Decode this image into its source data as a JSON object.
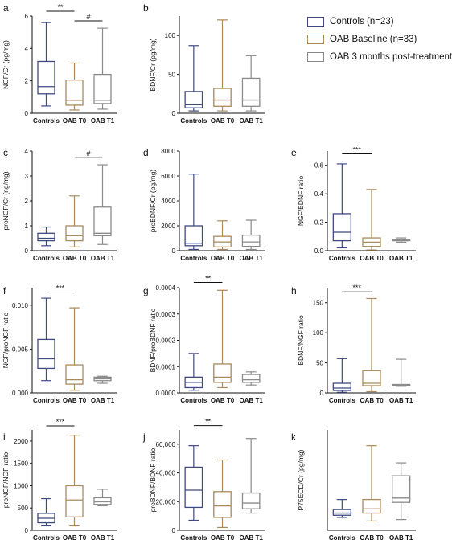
{
  "groups": [
    {
      "name": "Controls (n=23)",
      "color": "#3f4a7e"
    },
    {
      "name": "OAB Baseline (n=33)",
      "color": "#a88a5c"
    },
    {
      "name": "OAB 3 months post-treatment",
      "color": "#8a8a8a"
    }
  ],
  "chart_data": [
    {
      "panel": "a",
      "type": "boxplot",
      "title": "",
      "ylabel": "NGF/Cr (pg/mg)",
      "ylim": [
        0,
        6
      ],
      "yticks": [
        {
          "v": 0,
          "t": "0"
        },
        {
          "v": 2,
          "t": "2"
        },
        {
          "v": 4,
          "t": "4"
        },
        {
          "v": 6,
          "t": "6"
        }
      ],
      "categories": [
        "Controls",
        "OAB T0",
        "OAB T1"
      ],
      "boxes": [
        [
          0.45,
          1.2,
          1.65,
          3.2,
          5.6
        ],
        [
          0.2,
          0.5,
          0.8,
          2.05,
          3.1
        ],
        [
          0.25,
          0.6,
          0.8,
          2.4,
          5.25
        ]
      ],
      "sig": [
        {
          "from": 0,
          "to": 1,
          "y": 6.3,
          "label": "**"
        },
        {
          "from": 1,
          "to": 2,
          "y": 5.7,
          "label": "#"
        }
      ]
    },
    {
      "panel": "b",
      "type": "boxplot",
      "title": "",
      "ylabel": "BDNF/Cr (pg/mg)",
      "ylim": [
        0,
        125
      ],
      "yticks": [
        {
          "v": 0,
          "t": "0"
        },
        {
          "v": 50,
          "t": "50"
        },
        {
          "v": 100,
          "t": "100"
        }
      ],
      "categories": [
        "Controls",
        "OAB T0",
        "OAB T1"
      ],
      "boxes": [
        [
          3,
          7,
          11,
          28,
          87
        ],
        [
          3,
          9,
          17,
          32,
          120
        ],
        [
          3,
          9,
          17,
          45,
          74
        ]
      ],
      "sig": []
    },
    {
      "panel": "c",
      "type": "boxplot",
      "title": "",
      "ylabel": "proNGF/Cr (ng/mg)",
      "ylim": [
        0,
        4
      ],
      "yticks": [
        {
          "v": 0,
          "t": "0"
        },
        {
          "v": 1,
          "t": "1"
        },
        {
          "v": 2,
          "t": "2"
        },
        {
          "v": 3,
          "t": "3"
        },
        {
          "v": 4,
          "t": "4"
        }
      ],
      "categories": [
        "Controls",
        "OAB T0",
        "OAB T1"
      ],
      "boxes": [
        [
          0.2,
          0.4,
          0.5,
          0.7,
          0.95
        ],
        [
          0.15,
          0.4,
          0.6,
          1.0,
          2.2
        ],
        [
          0.25,
          0.6,
          0.7,
          1.75,
          3.45
        ]
      ],
      "sig": [
        {
          "from": 1,
          "to": 2,
          "y": 3.75,
          "label": "#"
        }
      ]
    },
    {
      "panel": "d",
      "type": "boxplot",
      "title": "",
      "ylabel": "proBDNF/Cr (pg/mg)",
      "ylim": [
        0,
        8000
      ],
      "yticks": [
        {
          "v": 0,
          "t": "0"
        },
        {
          "v": 2000,
          "t": "2000"
        },
        {
          "v": 4000,
          "t": "4000"
        },
        {
          "v": 6000,
          "t": "6000"
        },
        {
          "v": 8000,
          "t": "8000"
        }
      ],
      "categories": [
        "Controls",
        "OAB T0",
        "OAB T1"
      ],
      "boxes": [
        [
          100,
          400,
          600,
          2000,
          6150
        ],
        [
          100,
          300,
          700,
          1150,
          2400
        ],
        [
          100,
          350,
          700,
          1250,
          2450
        ]
      ],
      "sig": []
    },
    {
      "panel": "e",
      "type": "boxplot",
      "title": "",
      "ylabel": "NGF/BDNF ratio",
      "ylim": [
        0,
        0.7
      ],
      "yticks": [
        {
          "v": 0,
          "t": "0.0"
        },
        {
          "v": 0.2,
          "t": "0.2"
        },
        {
          "v": 0.4,
          "t": "0.4"
        },
        {
          "v": 0.6,
          "t": "0.6"
        }
      ],
      "categories": [
        "Controls",
        "OAB T0",
        "OAB T1"
      ],
      "boxes": [
        [
          0.02,
          0.07,
          0.13,
          0.26,
          0.61
        ],
        [
          0.005,
          0.03,
          0.06,
          0.09,
          0.43
        ],
        [
          0.06,
          0.07,
          0.075,
          0.08,
          0.09
        ]
      ],
      "sig": [
        {
          "from": 0,
          "to": 1,
          "y": 0.68,
          "label": "***"
        }
      ]
    },
    {
      "panel": "f",
      "type": "boxplot",
      "title": "",
      "ylabel": "NGF/proNGF ratio",
      "ylim": [
        0,
        0.012
      ],
      "yticks": [
        {
          "v": 0,
          "t": "0.000"
        },
        {
          "v": 0.005,
          "t": "0.005"
        },
        {
          "v": 0.01,
          "t": "0.010"
        }
      ],
      "categories": [
        "Controls",
        "OAB T0",
        "OAB T1"
      ],
      "boxes": [
        [
          0.0014,
          0.0028,
          0.0039,
          0.0061,
          0.0108
        ],
        [
          0.0003,
          0.001,
          0.0015,
          0.0032,
          0.0097
        ],
        [
          0.0011,
          0.0014,
          0.0016,
          0.0018,
          0.0019
        ]
      ],
      "sig": [
        {
          "from": 0,
          "to": 1,
          "y": 0.0115,
          "label": "***"
        }
      ]
    },
    {
      "panel": "g",
      "type": "boxplot",
      "title": "",
      "ylabel": "BDNF/proBDNF ratio",
      "ylim": [
        0,
        0.0004
      ],
      "yticks": [
        {
          "v": 0,
          "t": "0.0000"
        },
        {
          "v": 0.0001,
          "t": "0.0001"
        },
        {
          "v": 0.0002,
          "t": "0.0002"
        },
        {
          "v": 0.0003,
          "t": "0.0003"
        },
        {
          "v": 0.0004,
          "t": "0.0004"
        }
      ],
      "categories": [
        "Controls",
        "OAB T0",
        "OAB T1"
      ],
      "boxes": [
        [
          1e-05,
          2e-05,
          4e-05,
          6e-05,
          0.00015
        ],
        [
          2e-05,
          4e-05,
          6e-05,
          0.00011,
          0.00039
        ],
        [
          3e-05,
          4e-05,
          5e-05,
          7e-05,
          8e-05
        ]
      ],
      "sig": [
        {
          "from": 0,
          "to": 1,
          "y": 0.00042,
          "label": "**"
        }
      ]
    },
    {
      "panel": "h",
      "type": "boxplot",
      "title": "",
      "ylabel": "BDNF/NGF ratio",
      "ylim": [
        0,
        175
      ],
      "yticks": [
        {
          "v": 0,
          "t": "0"
        },
        {
          "v": 50,
          "t": "50"
        },
        {
          "v": 100,
          "t": "100"
        },
        {
          "v": 150,
          "t": "150"
        }
      ],
      "categories": [
        "Controls",
        "OAB T0",
        "OAB T1"
      ],
      "boxes": [
        [
          1,
          4,
          8,
          16,
          57
        ],
        [
          2,
          12,
          16,
          37,
          157
        ],
        [
          11,
          12,
          13,
          14,
          56
        ]
      ],
      "sig": [
        {
          "from": 0,
          "to": 1,
          "y": 168,
          "label": "***"
        }
      ]
    },
    {
      "panel": "i",
      "type": "boxplot",
      "title": "",
      "ylabel": "proNGF/NGF ratio",
      "ylim": [
        0,
        2250
      ],
      "yticks": [
        {
          "v": 0,
          "t": "0"
        },
        {
          "v": 500,
          "t": "500"
        },
        {
          "v": 1000,
          "t": "1000"
        },
        {
          "v": 1500,
          "t": "1500"
        },
        {
          "v": 2000,
          "t": "2000"
        }
      ],
      "categories": [
        "Controls",
        "OAB T0",
        "OAB T1"
      ],
      "boxes": [
        [
          100,
          170,
          270,
          380,
          710
        ],
        [
          100,
          300,
          680,
          1000,
          2130
        ],
        [
          550,
          580,
          640,
          730,
          920
        ]
      ],
      "sig": [
        {
          "from": 0,
          "to": 1,
          "y": 2340,
          "label": "***"
        }
      ]
    },
    {
      "panel": "j",
      "type": "boxplot",
      "title": "",
      "ylabel": "proBDNF/BDNF ratio",
      "ylim": [
        0,
        70000
      ],
      "yticks": [
        {
          "v": 0,
          "t": "0"
        },
        {
          "v": 20000,
          "t": "20,000"
        },
        {
          "v": 40000,
          "t": "40,000"
        },
        {
          "v": 60000,
          "t": "60,000"
        }
      ],
      "categories": [
        "Controls",
        "OAB T0",
        "OAB T1"
      ],
      "boxes": [
        [
          7000,
          16000,
          28000,
          44000,
          59000
        ],
        [
          2000,
          9000,
          17000,
          27000,
          49000
        ],
        [
          12000,
          15000,
          19000,
          26000,
          64000
        ]
      ],
      "sig": [
        {
          "from": 0,
          "to": 1,
          "y": 73000,
          "label": "**"
        }
      ]
    },
    {
      "panel": "k",
      "type": "boxplot",
      "title": "",
      "ylabel": "P75ECD/Cr (pg/mg)",
      "ylim": [
        0,
        14
      ],
      "yticks": [],
      "categories": [
        "Controls",
        "OAB T0",
        "OAB T1"
      ],
      "boxes": [
        [
          1.8,
          2.1,
          2.4,
          2.9,
          4.3
        ],
        [
          1.3,
          2.4,
          3.0,
          4.3,
          11.8
        ],
        [
          1.5,
          3.9,
          4.5,
          7.6,
          9.4
        ]
      ],
      "sig": []
    }
  ]
}
